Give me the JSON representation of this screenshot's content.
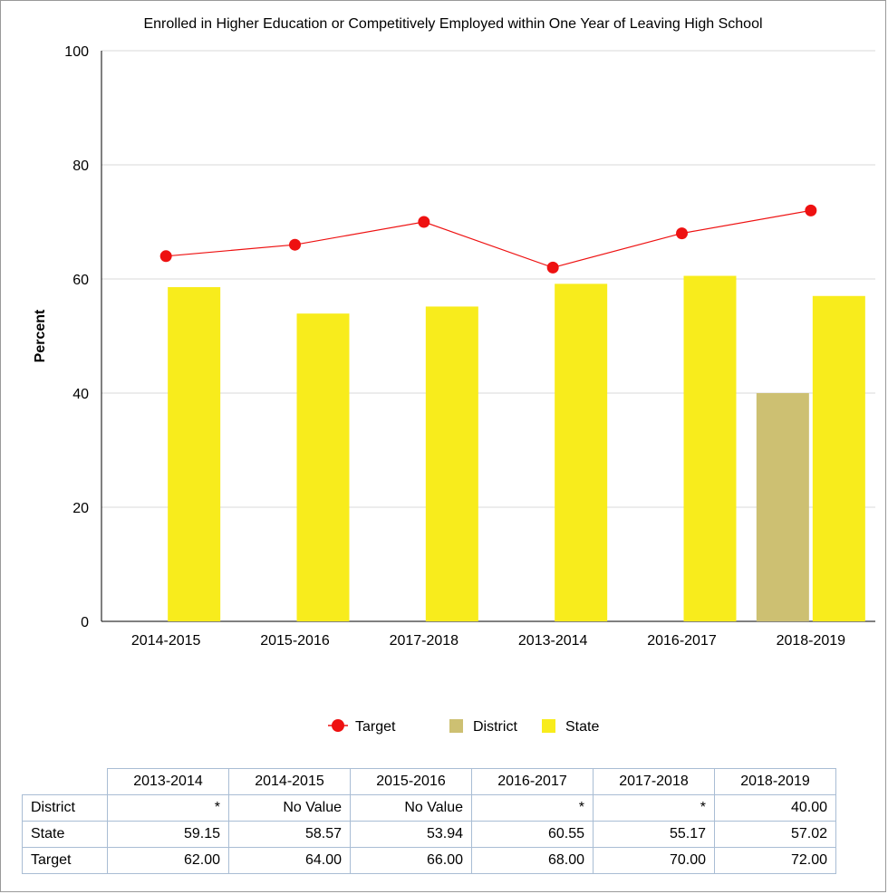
{
  "chart_data": {
    "type": "bar",
    "title": "Enrolled in Higher Education or Competitively Employed within One Year of Leaving High School",
    "ylabel": "Percent",
    "xlabel": "",
    "ylim": [
      0,
      100
    ],
    "yticks": [
      0,
      20,
      40,
      60,
      80,
      100
    ],
    "grid": true,
    "legend_position": "bottom",
    "categories": [
      "2014-2015",
      "2015-2016",
      "2017-2018",
      "2013-2014",
      "2016-2017",
      "2018-2019"
    ],
    "series": [
      {
        "name": "Target",
        "kind": "line",
        "color": "#ee1111",
        "values": [
          64.0,
          66.0,
          70.0,
          62.0,
          68.0,
          72.0
        ]
      },
      {
        "name": "District",
        "kind": "bar",
        "color": "#cdc072",
        "values": [
          null,
          null,
          0,
          0,
          0,
          40.0
        ]
      },
      {
        "name": "State",
        "kind": "bar",
        "color": "#f8ec1c",
        "values": [
          58.57,
          53.94,
          55.17,
          59.15,
          60.55,
          57.02
        ]
      }
    ]
  },
  "table": {
    "columns": [
      "2013-2014",
      "2014-2015",
      "2015-2016",
      "2016-2017",
      "2017-2018",
      "2018-2019"
    ],
    "rows": [
      {
        "label": "District",
        "cells": [
          "*",
          "No Value",
          "No Value",
          "*",
          "*",
          "40.00"
        ]
      },
      {
        "label": "State",
        "cells": [
          "59.15",
          "58.57",
          "53.94",
          "60.55",
          "55.17",
          "57.02"
        ]
      },
      {
        "label": "Target",
        "cells": [
          "62.00",
          "64.00",
          "66.00",
          "68.00",
          "70.00",
          "72.00"
        ]
      }
    ]
  }
}
